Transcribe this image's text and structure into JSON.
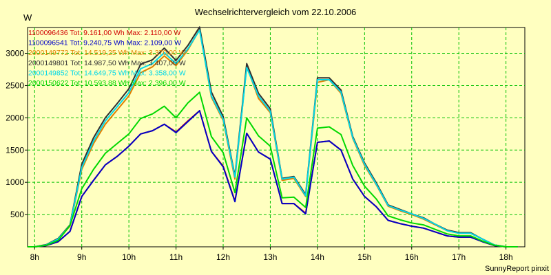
{
  "chart_data": {
    "type": "line",
    "title": "Wechselrichtervergleich vom 22.10.2006",
    "ylabel": "W",
    "xlabel": "",
    "footer": "SunnyReport pinxit",
    "xlim": [
      7.85,
      18.4
    ],
    "ylim": [
      0,
      3400
    ],
    "grid": true,
    "legend_position": "top-left",
    "xticks": [
      {
        "x": 8,
        "label": "8h"
      },
      {
        "x": 9,
        "label": "9h"
      },
      {
        "x": 10,
        "label": "10h"
      },
      {
        "x": 11,
        "label": "11h"
      },
      {
        "x": 12,
        "label": "12h"
      },
      {
        "x": 13,
        "label": "13h"
      },
      {
        "x": 14,
        "label": "14h"
      },
      {
        "x": 15,
        "label": "15h"
      },
      {
        "x": 16,
        "label": "16h"
      },
      {
        "x": 17,
        "label": "17h"
      },
      {
        "x": 18,
        "label": "18h"
      }
    ],
    "yticks": [
      {
        "y": 500,
        "label": "500"
      },
      {
        "y": 1000,
        "label": "1000"
      },
      {
        "y": 1500,
        "label": "1500"
      },
      {
        "y": 2000,
        "label": "2000"
      },
      {
        "y": 2500,
        "label": "2500"
      },
      {
        "y": 3000,
        "label": "3000"
      }
    ],
    "x": [
      7.85,
      8.0,
      8.25,
      8.5,
      8.75,
      9.0,
      9.25,
      9.5,
      9.75,
      10.0,
      10.25,
      10.5,
      10.75,
      11.0,
      11.25,
      11.5,
      11.75,
      12.0,
      12.25,
      12.5,
      12.75,
      13.0,
      13.25,
      13.5,
      13.75,
      14.0,
      14.25,
      14.5,
      14.75,
      15.0,
      15.25,
      15.5,
      15.75,
      16.0,
      16.25,
      16.5,
      16.75,
      17.0,
      17.25,
      17.5,
      17.75,
      18.0,
      18.25
    ],
    "series": [
      {
        "name": "1100096436 Tot: 9.161,00 Wh Max: 2.110,00 W",
        "color": "#D00000",
        "values": [
          0,
          0,
          20,
          80,
          240,
          780,
          1030,
          1270,
          1400,
          1560,
          1750,
          1800,
          1900,
          1780,
          1950,
          2110,
          1480,
          1250,
          710,
          1760,
          1470,
          1360,
          670,
          670,
          520,
          1620,
          1640,
          1500,
          1050,
          780,
          620,
          410,
          360,
          320,
          290,
          230,
          170,
          150,
          150,
          80,
          20,
          0,
          0
        ]
      },
      {
        "name": "1100096541 Tot: 9.240,75 Wh Max: 2.109,00 W",
        "color": "#0000C8",
        "values": [
          0,
          0,
          20,
          80,
          240,
          780,
          1030,
          1270,
          1400,
          1560,
          1750,
          1800,
          1900,
          1770,
          1940,
          2109,
          1480,
          1240,
          700,
          1760,
          1470,
          1360,
          670,
          670,
          510,
          1620,
          1640,
          1500,
          1050,
          780,
          620,
          410,
          360,
          320,
          290,
          230,
          170,
          150,
          150,
          80,
          20,
          0,
          0
        ]
      },
      {
        "name": "2000149772 Tot: 14.519,25 Wh Max: 3.370,00 W",
        "color": "#E08000",
        "values": [
          0,
          0,
          30,
          120,
          320,
          1200,
          1600,
          1900,
          2120,
          2340,
          2700,
          2790,
          2960,
          2810,
          3050,
          3370,
          2320,
          1960,
          1050,
          2800,
          2300,
          2080,
          1030,
          1060,
          780,
          2550,
          2590,
          2380,
          1680,
          1260,
          960,
          630,
          560,
          500,
          430,
          340,
          250,
          210,
          210,
          120,
          30,
          0,
          0
        ]
      },
      {
        "name": "2000149801 Tot: 14.987,50 Wh Max: 3.407,00 W",
        "color": "#303030",
        "values": [
          0,
          0,
          35,
          130,
          340,
          1280,
          1690,
          2000,
          2220,
          2450,
          2830,
          2900,
          3080,
          2890,
          3120,
          3407,
          2400,
          2020,
          1100,
          2840,
          2380,
          2140,
          1060,
          1090,
          810,
          2620,
          2620,
          2430,
          1710,
          1300,
          990,
          650,
          580,
          510,
          450,
          350,
          260,
          220,
          220,
          120,
          30,
          0,
          0
        ]
      },
      {
        "name": "2000149852 Tot: 14.649,75 Wh Max: 3.358,00 W",
        "color": "#00D8E8",
        "values": [
          0,
          0,
          30,
          120,
          330,
          1230,
          1640,
          1950,
          2170,
          2390,
          2760,
          2840,
          3010,
          2840,
          3070,
          3358,
          2340,
          1980,
          1080,
          2780,
          2340,
          2100,
          1050,
          1080,
          790,
          2590,
          2590,
          2400,
          1690,
          1280,
          970,
          640,
          570,
          510,
          440,
          350,
          250,
          210,
          210,
          120,
          30,
          0,
          0
        ]
      },
      {
        "name": "2000150622 Tot: 10.593,88 Wh Max: 2.396,00 W",
        "color": "#00D800",
        "values": [
          0,
          0,
          25,
          100,
          330,
          900,
          1200,
          1450,
          1600,
          1750,
          1990,
          2060,
          2180,
          2000,
          2230,
          2396,
          1710,
          1460,
          840,
          2000,
          1720,
          1560,
          760,
          770,
          610,
          1840,
          1860,
          1740,
          1260,
          940,
          740,
          480,
          420,
          370,
          340,
          270,
          200,
          170,
          170,
          90,
          25,
          0,
          0
        ]
      }
    ]
  }
}
